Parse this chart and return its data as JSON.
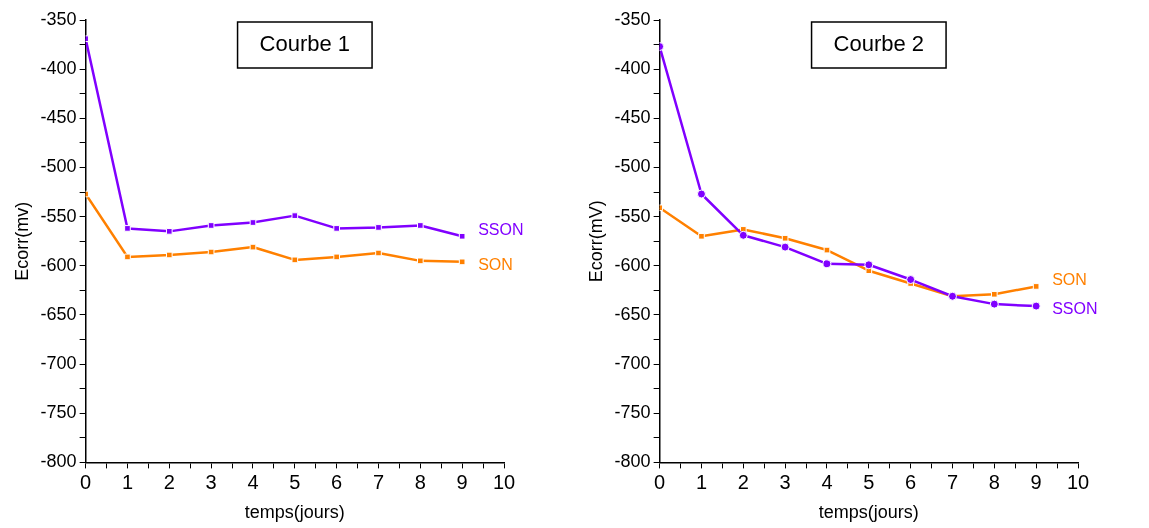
{
  "chart_data": [
    {
      "type": "line",
      "title": "Courbe 1",
      "xlabel": "temps(jours)",
      "ylabel": "Ecorr(mv)",
      "x": [
        0,
        1,
        2,
        3,
        4,
        5,
        6,
        7,
        8,
        9
      ],
      "series": [
        {
          "name": "SSON",
          "color": "#8000ff",
          "marker": "square",
          "values": [
            -369,
            -562,
            -565,
            -559,
            -556,
            -549,
            -562,
            -561,
            -559,
            -570
          ]
        },
        {
          "name": "SON",
          "color": "#ff8000",
          "marker": "square",
          "values": [
            -527,
            -591,
            -589,
            -586,
            -581,
            -594,
            -591,
            -587,
            -595,
            -596
          ]
        }
      ],
      "xlim": [
        0,
        10
      ],
      "xticks": [
        0,
        {
          "value": 0.5,
          "label": null
        },
        1,
        {
          "value": 1.5,
          "label": null
        },
        2,
        {
          "value": 2.5,
          "label": null
        },
        3,
        {
          "value": 3.5,
          "label": null
        },
        4,
        {
          "value": 4.5,
          "label": null
        },
        5,
        {
          "value": 5.5,
          "label": null
        },
        6,
        {
          "value": 6.5,
          "label": null
        },
        7,
        {
          "value": 7.5,
          "label": null
        },
        8,
        {
          "value": 8.5,
          "label": null
        },
        9,
        {
          "value": 9.5,
          "label": null
        },
        10
      ],
      "ylim": [
        -800,
        -350
      ],
      "yticks": [
        -800,
        {
          "value": -775,
          "label": null
        },
        -750,
        {
          "value": -725,
          "label": null
        },
        -700,
        {
          "value": -675,
          "label": null
        },
        -650,
        {
          "value": -625,
          "label": null
        },
        -600,
        {
          "value": -575,
          "label": null
        },
        -550,
        {
          "value": -525,
          "label": null
        },
        -500,
        {
          "value": -475,
          "label": null
        },
        -450,
        {
          "value": -425,
          "label": null
        },
        -400,
        {
          "value": -375,
          "label": null
        },
        -350
      ],
      "grid": false,
      "legend": false,
      "line_style": "solid"
    },
    {
      "type": "line",
      "title": "Courbe 2",
      "xlabel": "temps(jours)",
      "ylabel": "Ecorr(mV)",
      "x": [
        0,
        1,
        2,
        3,
        4,
        5,
        6,
        7,
        8,
        9
      ],
      "series": [
        {
          "name": "SON",
          "color": "#ff8000",
          "marker": "square",
          "values": [
            -541,
            -570,
            -563,
            -572,
            -584,
            -605,
            -618,
            -631,
            -629,
            -621
          ]
        },
        {
          "name": "SSON",
          "color": "#8000ff",
          "marker": "circle",
          "values": [
            -377,
            -527,
            -569,
            -581,
            -598,
            -599,
            -614,
            -631,
            -639,
            -641
          ]
        }
      ],
      "xlim": [
        0,
        10
      ],
      "xticks": [
        0,
        {
          "value": 0.5,
          "label": null
        },
        1,
        {
          "value": 1.5,
          "label": null
        },
        2,
        {
          "value": 2.5,
          "label": null
        },
        3,
        {
          "value": 3.5,
          "label": null
        },
        4,
        {
          "value": 4.5,
          "label": null
        },
        5,
        {
          "value": 5.5,
          "label": null
        },
        6,
        {
          "value": 6.5,
          "label": null
        },
        7,
        {
          "value": 7.5,
          "label": null
        },
        8,
        {
          "value": 8.5,
          "label": null
        },
        9,
        {
          "value": 9.5,
          "label": null
        },
        10
      ],
      "ylim": [
        -800,
        -350
      ],
      "yticks": [
        -800,
        {
          "value": -775,
          "label": null
        },
        -750,
        {
          "value": -725,
          "label": null
        },
        -700,
        {
          "value": -675,
          "label": null
        },
        -650,
        {
          "value": -625,
          "label": null
        },
        -600,
        {
          "value": -575,
          "label": null
        },
        -550,
        {
          "value": -525,
          "label": null
        },
        -500,
        {
          "value": -475,
          "label": null
        },
        -450,
        {
          "value": -425,
          "label": null
        },
        -400,
        {
          "value": -375,
          "label": null
        },
        -350
      ],
      "grid": false,
      "legend": false,
      "line_style": "solid"
    }
  ]
}
